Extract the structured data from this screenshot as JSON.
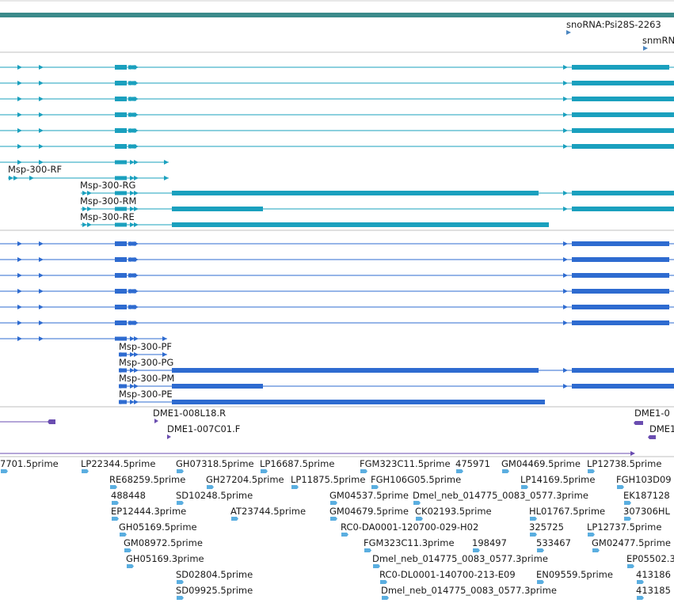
{
  "colors": {
    "top_bar": "#3a8a8a",
    "divider": "#bfbfbf",
    "tx_teal": "#1aa0be",
    "tx_blue": "#2e6bd0",
    "dme_purple": "#6a4db0",
    "est_blue": "#5aaee0",
    "snorna": "#4a86c0"
  },
  "labels": {
    "snorna": "snoRNA:Psi28S-2263",
    "snm": "snmRN",
    "rf": "Msp-300-RF",
    "rg": "Msp-300-RG",
    "rm": "Msp-300-RM",
    "re": "Msp-300-RE",
    "pf": "Msp-300-PF",
    "pg": "Msp-300-PG",
    "pm": "Msp-300-PM",
    "pe": "Msp-300-PE",
    "dme1": "DME1-008L18.R",
    "dme2": "DME1-007C01.F",
    "dme3": "DME1-0",
    "dme4": "DME1"
  },
  "est_features": [
    "7701.5prime",
    "LP22344.5prime",
    "GH07318.5prime",
    "LP16687.5prime",
    "FGM323C11.5prime",
    "475971",
    "GM04469.5prime",
    "LP12738.5prime",
    "RE68259.5prime",
    "GH27204.5prime",
    "LP11875.5prime",
    "FGH106G05.5prime",
    "LP14169.5prime",
    "FGH103D09",
    "488448",
    "SD10248.5prime",
    "GM04537.5prime",
    "Dmel_neb_014775_0083_0577.3prime",
    "EK187128",
    "EP12444.3prime",
    "AT23744.5prime",
    "GM04679.5prime",
    "CK02193.5prime",
    "HL01767.5prime",
    "307306HL",
    "GH05169.5prime",
    "RC0-DA0001-120700-029-H02",
    "325725",
    "LP12737.5prime",
    "GM08972.5prime",
    "FGM323C11.3prime",
    "198497",
    "533467",
    "GM02477.5prime",
    "GH05169.3prime",
    "Dmel_neb_014775_0083_0577.3prime",
    "EP05502.3",
    "SD02804.5prime",
    "RC0-DL0001-140700-213-E09",
    "EN09559.5prime",
    "413186",
    "SD09925.5prime",
    "Dmel_neb_014775_0083_0577.3prime",
    "413185"
  ]
}
